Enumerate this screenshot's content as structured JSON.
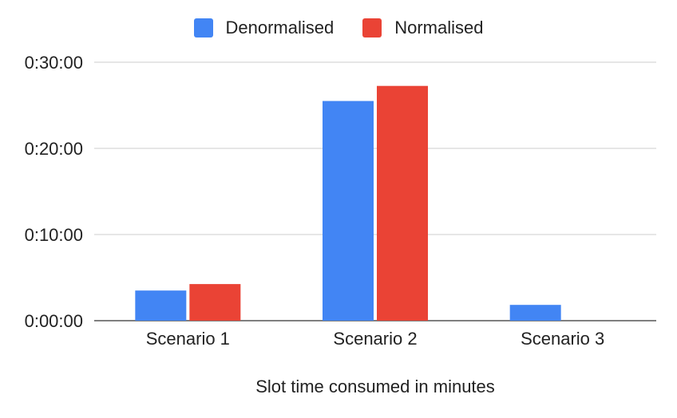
{
  "chart_data": {
    "type": "bar",
    "categories": [
      "Scenario 1",
      "Scenario 2",
      "Scenario 3"
    ],
    "series": [
      {
        "name": "Denormalised",
        "color": "#4285F4",
        "values": [
          "0:03:30",
          "0:25:30",
          "0:01:50"
        ]
      },
      {
        "name": "Normalised",
        "color": "#EA4335",
        "values": [
          "0:04:15",
          "0:27:15",
          null
        ]
      }
    ],
    "xlabel": "Slot time consumed in minutes",
    "ylabel": "",
    "yticks": [
      "0:00:00",
      "0:10:00",
      "0:20:00",
      "0:30:00"
    ],
    "ylim": [
      "0:00:00",
      "0:30:00"
    ],
    "grid": true,
    "legend_position": "top-center"
  }
}
